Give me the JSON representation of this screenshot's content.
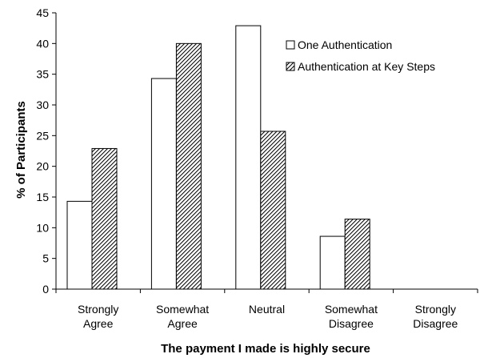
{
  "chart_data": {
    "type": "bar",
    "title": "",
    "xlabel": "The payment I made is highly secure",
    "ylabel": "% of Participants",
    "categories": [
      [
        "Strongly",
        "Agree"
      ],
      [
        "Somewhat",
        "Agree"
      ],
      [
        "Neutral"
      ],
      [
        "Somewhat",
        "Disagree"
      ],
      [
        "Strongly",
        "Disagree"
      ]
    ],
    "series": [
      {
        "name": "One Authentication",
        "values": [
          14.3,
          34.3,
          42.9,
          8.6,
          0
        ],
        "fill": "white"
      },
      {
        "name": "Authentication at Key Steps",
        "values": [
          22.9,
          40.0,
          25.7,
          11.4,
          0
        ],
        "fill": "hatched"
      }
    ],
    "ylim": [
      0,
      45
    ],
    "yticks": [
      0,
      5,
      10,
      15,
      20,
      25,
      30,
      35,
      40,
      45
    ],
    "grid": false,
    "legend_position": "top-right",
    "colors": {
      "bar_stroke": "#000000",
      "axis": "#000000",
      "bar_fill": "#ffffff"
    }
  }
}
